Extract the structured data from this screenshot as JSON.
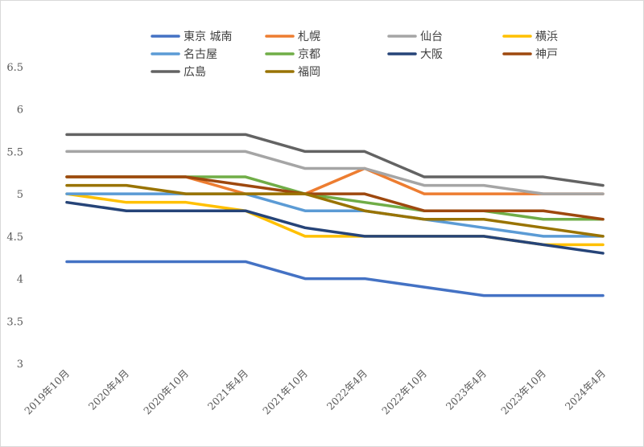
{
  "chart_data": {
    "type": "line",
    "title": "",
    "xlabel": "",
    "ylabel": "",
    "ylim": [
      3,
      6.5
    ],
    "yticks": [
      3,
      3.5,
      4,
      4.5,
      5,
      5.5,
      6,
      6.5
    ],
    "ytick_labels": [
      "3",
      "3.5",
      "4",
      "4.5",
      "5",
      "5.5",
      "6",
      "6.5"
    ],
    "grid": false,
    "legend_position": "top",
    "categories": [
      "2019年10月",
      "2020年4月",
      "2020年10月",
      "2021年4月",
      "2021年10月",
      "2022年4月",
      "2022年10月",
      "2023年4月",
      "2023年10月",
      "2024年4月"
    ],
    "series": [
      {
        "name": "東京 城南",
        "color": "#4472C4",
        "values": [
          4.2,
          4.2,
          4.2,
          4.2,
          4.0,
          4.0,
          3.9,
          3.8,
          3.8,
          3.8
        ]
      },
      {
        "name": "札幌",
        "color": "#ED7D31",
        "values": [
          5.2,
          5.2,
          5.2,
          5.0,
          5.0,
          5.3,
          5.0,
          5.0,
          5.0,
          5.0
        ]
      },
      {
        "name": "仙台",
        "color": "#A5A5A5",
        "values": [
          5.5,
          5.5,
          5.5,
          5.5,
          5.3,
          5.3,
          5.1,
          5.1,
          5.0,
          5.0
        ]
      },
      {
        "name": "横浜",
        "color": "#FFC000",
        "values": [
          5.0,
          4.9,
          4.9,
          4.8,
          4.5,
          4.5,
          4.5,
          4.5,
          4.4,
          4.4
        ]
      },
      {
        "name": "名古屋",
        "color": "#5B9BD5",
        "values": [
          5.0,
          5.0,
          5.0,
          5.0,
          4.8,
          4.8,
          4.7,
          4.6,
          4.5,
          4.5
        ]
      },
      {
        "name": "京都",
        "color": "#70AD47",
        "values": [
          5.2,
          5.2,
          5.2,
          5.2,
          5.0,
          4.9,
          4.8,
          4.8,
          4.7,
          4.7
        ]
      },
      {
        "name": "大阪",
        "color": "#264478",
        "values": [
          4.9,
          4.8,
          4.8,
          4.8,
          4.6,
          4.5,
          4.5,
          4.5,
          4.4,
          4.3
        ]
      },
      {
        "name": "神戸",
        "color": "#9E480E",
        "values": [
          5.2,
          5.2,
          5.2,
          5.1,
          5.0,
          5.0,
          4.8,
          4.8,
          4.8,
          4.7
        ]
      },
      {
        "name": "広島",
        "color": "#636363",
        "values": [
          5.7,
          5.7,
          5.7,
          5.7,
          5.5,
          5.5,
          5.2,
          5.2,
          5.2,
          5.1
        ]
      },
      {
        "name": "福岡",
        "color": "#997300",
        "values": [
          5.1,
          5.1,
          5.0,
          5.0,
          5.0,
          4.8,
          4.7,
          4.7,
          4.6,
          4.5
        ]
      }
    ]
  }
}
